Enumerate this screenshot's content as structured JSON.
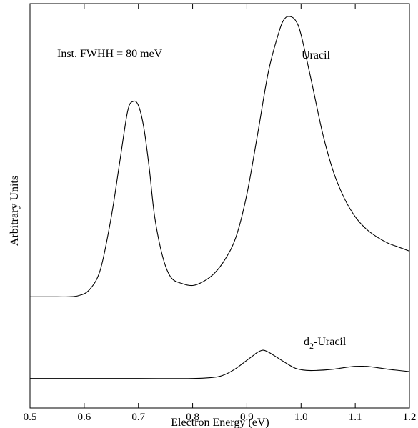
{
  "chart_data": {
    "type": "line",
    "title": "",
    "xlabel": "Electron Energy (eV)",
    "ylabel": "Arbitrary Units",
    "xlim": [
      0.5,
      1.2
    ],
    "ylim": [
      0,
      1.0
    ],
    "grid": false,
    "x_ticks": [
      "0.5",
      "0.6",
      "0.7",
      "0.8",
      "0.9",
      "1.0",
      "1.1",
      "1.2"
    ],
    "x_tick_values": [
      0.5,
      0.6,
      0.7,
      0.8,
      0.9,
      1.0,
      1.1,
      1.2
    ],
    "annotations": {
      "fwhh": "Inst. FWHH = 80 meV"
    },
    "series": [
      {
        "name": "Uracil",
        "x": [
          0.5,
          0.55,
          0.57,
          0.59,
          0.61,
          0.63,
          0.65,
          0.665,
          0.68,
          0.69,
          0.7,
          0.71,
          0.72,
          0.73,
          0.745,
          0.76,
          0.78,
          0.8,
          0.82,
          0.84,
          0.86,
          0.88,
          0.9,
          0.92,
          0.94,
          0.96,
          0.97,
          0.98,
          0.99,
          1.0,
          1.02,
          1.04,
          1.06,
          1.08,
          1.1,
          1.12,
          1.14,
          1.16,
          1.18,
          1.2
        ],
        "values": [
          0.275,
          0.275,
          0.275,
          0.278,
          0.293,
          0.343,
          0.473,
          0.603,
          0.733,
          0.758,
          0.748,
          0.693,
          0.593,
          0.473,
          0.373,
          0.323,
          0.308,
          0.303,
          0.313,
          0.333,
          0.368,
          0.423,
          0.528,
          0.678,
          0.833,
          0.933,
          0.963,
          0.968,
          0.958,
          0.923,
          0.803,
          0.678,
          0.583,
          0.518,
          0.473,
          0.443,
          0.423,
          0.408,
          0.398,
          0.388
        ]
      },
      {
        "name": "d2-Uracil",
        "label_base": "d",
        "label_sub": "2",
        "label_rest": "-Uracil",
        "x": [
          0.5,
          0.6,
          0.7,
          0.8,
          0.84,
          0.86,
          0.88,
          0.9,
          0.91,
          0.92,
          0.93,
          0.94,
          0.95,
          0.97,
          0.99,
          1.01,
          1.03,
          1.06,
          1.08,
          1.1,
          1.12,
          1.14,
          1.16,
          1.18,
          1.2
        ],
        "values": [
          0.073,
          0.073,
          0.073,
          0.073,
          0.076,
          0.083,
          0.098,
          0.118,
          0.128,
          0.138,
          0.143,
          0.138,
          0.13,
          0.113,
          0.098,
          0.093,
          0.093,
          0.096,
          0.1,
          0.103,
          0.103,
          0.1,
          0.096,
          0.093,
          0.09
        ]
      }
    ]
  }
}
